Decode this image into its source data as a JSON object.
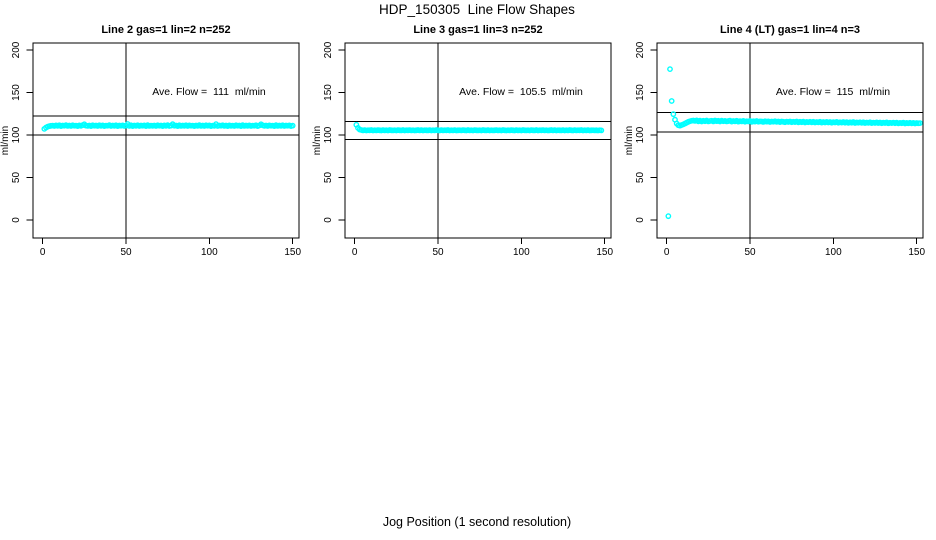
{
  "page_title": "HDP_150305  Line Flow Shapes",
  "x_axis_title": "Jog Position (1 second resolution)",
  "chart_data": {
    "type": "scatter",
    "y_axis_label": "ml/min",
    "x_ticks": [
      0,
      50,
      100,
      150
    ],
    "y_ticks": [
      0,
      50,
      100,
      150,
      200
    ],
    "xlim": [
      0,
      153
    ],
    "ylim": [
      0,
      200
    ],
    "grid": false,
    "point_color": "#00FFFF",
    "axis_color": "#000000",
    "reference_vline_x": 50,
    "band_percent": 10,
    "panels": [
      {
        "title": "Line 2 gas=1 lin=2 n=252",
        "n": 252,
        "ave_flow_value": 111,
        "ave_flow_label": "Ave. Flow =  111  ml/min",
        "x_start": 1,
        "x_step": 1,
        "y": [
          107.2,
          108.8,
          109.8,
          110.4,
          110.8,
          111.0,
          110.6,
          111.3,
          110.8,
          111.5,
          110.5,
          111.1,
          110.9,
          111.6,
          110.7,
          111.2,
          110.6,
          111.4,
          110.9,
          111.0,
          110.5,
          111.3,
          110.8,
          111.6,
          112.6,
          111.0,
          110.7,
          111.2,
          110.5,
          111.4,
          110.9,
          111.1,
          110.6,
          111.5,
          110.8,
          111.3,
          110.5,
          111.0,
          110.9,
          111.6,
          110.6,
          111.2,
          110.8,
          111.4,
          110.5,
          111.1,
          110.9,
          111.3,
          110.6,
          111.0,
          112.9,
          110.7,
          111.4,
          110.5,
          111.2,
          110.8,
          111.5,
          110.6,
          111.1,
          110.9,
          111.3,
          110.5,
          111.6,
          110.7,
          111.0,
          110.8,
          111.2,
          110.6,
          111.4,
          110.9,
          111.1,
          110.5,
          111.3,
          110.8,
          111.6,
          110.6,
          111.0,
          112.7,
          110.9,
          111.2,
          110.5,
          111.4,
          110.7,
          111.1,
          110.8,
          111.5,
          110.6,
          111.3,
          110.9,
          111.0,
          110.5,
          111.2,
          110.8,
          111.6,
          110.7,
          111.1,
          110.6,
          111.4,
          110.9,
          111.3,
          110.5,
          111.0,
          110.8,
          112.8,
          110.6,
          111.2,
          110.9,
          111.5,
          110.7,
          111.1,
          110.5,
          111.3,
          110.8,
          111.0,
          110.6,
          111.4,
          110.9,
          111.2,
          110.5,
          111.6,
          110.7,
          111.1,
          110.8,
          111.3,
          110.6,
          111.0,
          110.9,
          111.5,
          110.5,
          111.2,
          112.6,
          111.4,
          110.8,
          111.1,
          110.6,
          111.3,
          110.9,
          111.0,
          110.5,
          111.6,
          110.7,
          111.2,
          110.8,
          111.4,
          110.6,
          111.1,
          110.9,
          111.3,
          110.5,
          111.0
        ]
      },
      {
        "title": "Line 3 gas=1 lin=3 n=252",
        "n": 252,
        "ave_flow_value": 105.5,
        "ave_flow_label": "Ave. Flow =  105.5  ml/min",
        "x_start": 1,
        "x_step": 1,
        "y": [
          112.0,
          108.3,
          106.4,
          105.9,
          105.4,
          105.7,
          105.3,
          105.6,
          105.5,
          105.8,
          105.3,
          105.6,
          105.4,
          105.7,
          105.5,
          105.3,
          105.7,
          105.4,
          105.6,
          105.3,
          105.8,
          105.5,
          105.4,
          105.6,
          105.3,
          105.7,
          105.5,
          105.4,
          105.8,
          105.3,
          105.6,
          105.5,
          105.7,
          105.4,
          105.6,
          105.3,
          105.5,
          105.8,
          105.4,
          105.7,
          105.3,
          105.6,
          105.5,
          105.4,
          105.7,
          105.3,
          105.6,
          105.4,
          105.8,
          105.5,
          105.3,
          105.7,
          105.4,
          105.6,
          105.5,
          105.8,
          105.3,
          105.6,
          105.4,
          105.7,
          105.3,
          105.5,
          105.6,
          105.4,
          105.7,
          105.5,
          105.3,
          105.8,
          105.4,
          105.6,
          105.3,
          105.7,
          105.5,
          105.4,
          105.6,
          105.3,
          105.8,
          105.5,
          105.4,
          105.7,
          105.3,
          105.6,
          105.4,
          105.5,
          105.7,
          105.4,
          105.6,
          105.3,
          105.8,
          105.5,
          105.3,
          105.6,
          105.4,
          105.7,
          105.5,
          105.3,
          105.7,
          105.4,
          105.6,
          105.3,
          105.8,
          105.5,
          105.4,
          105.6,
          105.3,
          105.7,
          105.5,
          105.4,
          105.8,
          105.3,
          105.6,
          105.5,
          105.7,
          105.4,
          105.6,
          105.3,
          105.5,
          105.8,
          105.4,
          105.7,
          105.3,
          105.6,
          105.5,
          105.4,
          105.7,
          105.3,
          105.6,
          105.4,
          105.8,
          105.5,
          105.3,
          105.7,
          105.4,
          105.6,
          105.5,
          105.8,
          105.3,
          105.6,
          105.4,
          105.7,
          105.3,
          105.5,
          105.6,
          105.4,
          105.5,
          105.3,
          105.6,
          105.4
        ]
      },
      {
        "title": "Line 4 (LT) gas=1 lin=4 n=3",
        "n": 3,
        "ave_flow_value": 115,
        "ave_flow_label": "Ave. Flow =  115  ml/min",
        "x_start": 1,
        "x_step": 1,
        "y": [
          4.5,
          177.5,
          140.0,
          124.5,
          118.0,
          113.5,
          111.5,
          111.0,
          111.8,
          112.5,
          113.5,
          114.5,
          115.5,
          116.2,
          116.8,
          117.0,
          116.6,
          117.2,
          116.1,
          116.9,
          115.9,
          116.8,
          116.2,
          117.0,
          116.0,
          116.5,
          116.8,
          116.0,
          117.1,
          116.3,
          116.7,
          115.9,
          116.9,
          116.2,
          116.6,
          116.0,
          116.4,
          116.9,
          115.8,
          116.5,
          116.1,
          116.8,
          115.7,
          116.3,
          116.0,
          116.6,
          115.6,
          116.2,
          115.9,
          116.5,
          115.5,
          116.1,
          115.8,
          116.4,
          115.6,
          116.0,
          115.9,
          115.4,
          116.2,
          115.7,
          116.0,
          115.3,
          115.9,
          115.6,
          116.1,
          115.5,
          115.8,
          115.2,
          115.9,
          115.5,
          115.1,
          115.7,
          115.3,
          115.9,
          115.0,
          115.6,
          115.2,
          115.8,
          114.9,
          115.5,
          115.1,
          115.7,
          114.8,
          115.4,
          115.0,
          115.6,
          114.9,
          115.5,
          114.7,
          115.3,
          114.9,
          115.6,
          114.6,
          115.2,
          114.8,
          115.4,
          114.7,
          115.3,
          114.5,
          115.1,
          114.8,
          115.4,
          114.4,
          115.0,
          114.6,
          115.2,
          114.5,
          115.1,
          114.3,
          114.9,
          114.5,
          115.2,
          114.2,
          114.8,
          114.4,
          115.0,
          114.3,
          114.9,
          114.1,
          114.7,
          114.3,
          115.0,
          114.0,
          114.6,
          114.2,
          114.8,
          114.1,
          114.7,
          113.9,
          114.5,
          114.1,
          114.8,
          113.8,
          114.4,
          114.0,
          114.6,
          113.9,
          114.5,
          113.7,
          114.3,
          113.9,
          114.6,
          113.6,
          114.2,
          113.8,
          114.4,
          113.7,
          114.3,
          113.6,
          114.1,
          113.8,
          114.0
        ]
      }
    ]
  }
}
